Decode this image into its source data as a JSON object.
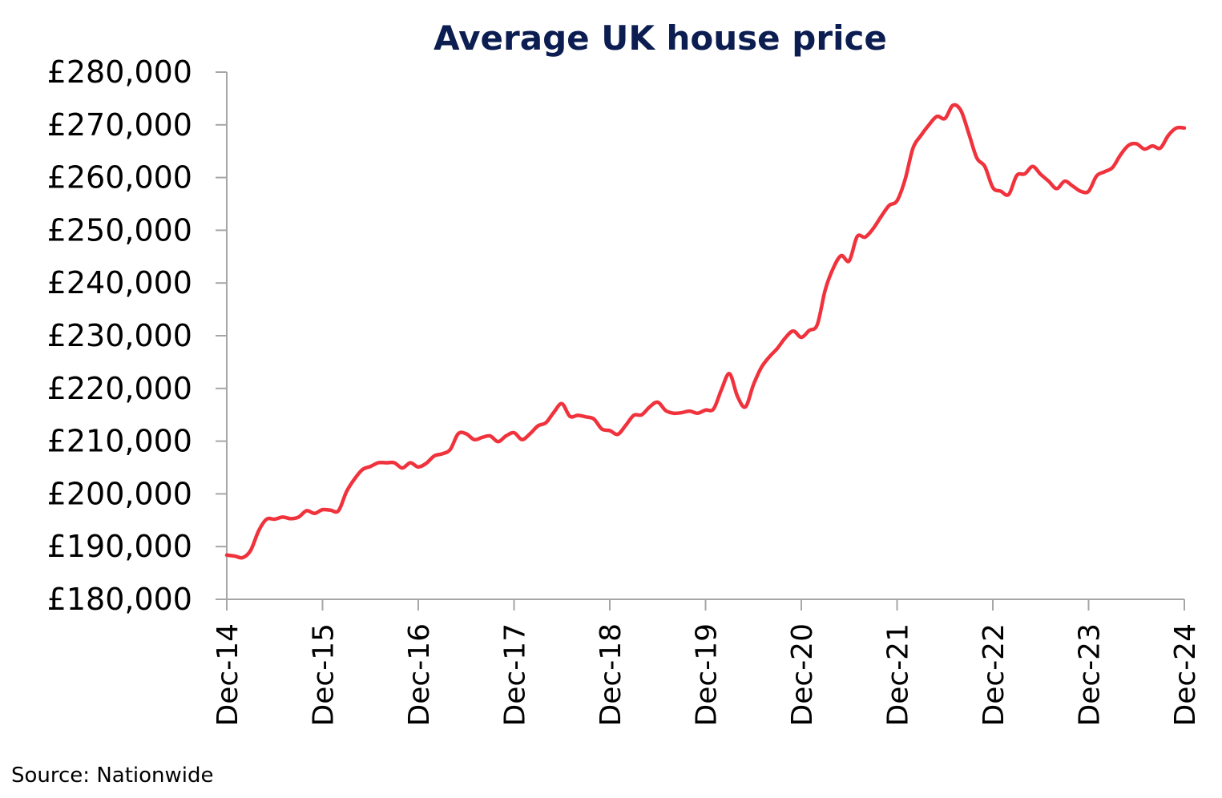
{
  "chart_data": {
    "type": "line",
    "title": "Average UK house price",
    "xlabel": "",
    "ylabel": "",
    "ylim": [
      180000,
      280000
    ],
    "yticks": [
      180000,
      190000,
      200000,
      210000,
      220000,
      230000,
      240000,
      250000,
      260000,
      270000,
      280000
    ],
    "ytick_labels": [
      "£180,000",
      "£190,000",
      "£200,000",
      "£210,000",
      "£220,000",
      "£230,000",
      "£240,000",
      "£250,000",
      "£260,000",
      "£270,000",
      "£280,000"
    ],
    "xtick_labels": [
      "Dec-14",
      "Dec-15",
      "Dec-16",
      "Dec-17",
      "Dec-18",
      "Dec-19",
      "Dec-20",
      "Dec-21",
      "Dec-22",
      "Dec-23",
      "Dec-24"
    ],
    "grid": false,
    "legend": "none",
    "colors": {
      "line": "#f0323c",
      "title": "#0b1d51",
      "axis": "#a6a6a6"
    },
    "series": [
      {
        "name": "",
        "x": [
          "Dec-14",
          "Jan-15",
          "Feb-15",
          "Mar-15",
          "Apr-15",
          "May-15",
          "Jun-15",
          "Jul-15",
          "Aug-15",
          "Sep-15",
          "Oct-15",
          "Nov-15",
          "Dec-15",
          "Jan-16",
          "Feb-16",
          "Mar-16",
          "Apr-16",
          "May-16",
          "Jun-16",
          "Jul-16",
          "Aug-16",
          "Sep-16",
          "Oct-16",
          "Nov-16",
          "Dec-16",
          "Jan-17",
          "Feb-17",
          "Mar-17",
          "Apr-17",
          "May-17",
          "Jun-17",
          "Jul-17",
          "Aug-17",
          "Sep-17",
          "Oct-17",
          "Nov-17",
          "Dec-17",
          "Jan-18",
          "Feb-18",
          "Mar-18",
          "Apr-18",
          "May-18",
          "Jun-18",
          "Jul-18",
          "Aug-18",
          "Sep-18",
          "Oct-18",
          "Nov-18",
          "Dec-18",
          "Jan-19",
          "Feb-19",
          "Mar-19",
          "Apr-19",
          "May-19",
          "Jun-19",
          "Jul-19",
          "Aug-19",
          "Sep-19",
          "Oct-19",
          "Nov-19",
          "Dec-19",
          "Jan-20",
          "Feb-20",
          "Mar-20",
          "Apr-20",
          "May-20",
          "Jun-20",
          "Jul-20",
          "Aug-20",
          "Sep-20",
          "Oct-20",
          "Nov-20",
          "Dec-20",
          "Jan-21",
          "Feb-21",
          "Mar-21",
          "Apr-21",
          "May-21",
          "Jun-21",
          "Jul-21",
          "Aug-21",
          "Sep-21",
          "Oct-21",
          "Nov-21",
          "Dec-21",
          "Jan-22",
          "Feb-22",
          "Mar-22",
          "Apr-22",
          "May-22",
          "Jun-22",
          "Jul-22",
          "Aug-22",
          "Sep-22",
          "Oct-22",
          "Nov-22",
          "Dec-22",
          "Jan-23",
          "Feb-23",
          "Mar-23",
          "Apr-23",
          "May-23",
          "Jun-23",
          "Jul-23",
          "Aug-23",
          "Sep-23",
          "Oct-23",
          "Nov-23",
          "Dec-23",
          "Jan-24",
          "Feb-24",
          "Mar-24",
          "Apr-24",
          "May-24",
          "Jun-24",
          "Jul-24",
          "Aug-24",
          "Sep-24",
          "Oct-24",
          "Nov-24",
          "Dec-24"
        ],
        "values": [
          188400,
          188200,
          187900,
          189300,
          193000,
          195200,
          195200,
          195600,
          195300,
          195600,
          196800,
          196300,
          197000,
          196900,
          196800,
          200400,
          202800,
          204600,
          205200,
          205900,
          205900,
          205900,
          204900,
          205900,
          205100,
          205800,
          207200,
          207600,
          208400,
          211400,
          211400,
          210300,
          210700,
          211000,
          209900,
          211000,
          211600,
          210300,
          211400,
          212900,
          213500,
          215500,
          217100,
          214700,
          214900,
          214600,
          214200,
          212300,
          212000,
          211300,
          213000,
          214900,
          215000,
          216500,
          217400,
          215800,
          215300,
          215400,
          215700,
          215300,
          215900,
          216100,
          219800,
          222800,
          218500,
          216500,
          220700,
          224000,
          226000,
          227600,
          229600,
          230900,
          229700,
          231000,
          232100,
          238700,
          242800,
          245200,
          244200,
          248800,
          248700,
          250300,
          252600,
          254700,
          255600,
          259600,
          265600,
          268000,
          270000,
          271600,
          271200,
          273700,
          272700,
          268300,
          263700,
          262100,
          258100,
          257400,
          256800,
          260400,
          260700,
          262100,
          260600,
          259300,
          257900,
          259300,
          258400,
          257400,
          257400,
          260300,
          261100,
          261900,
          264300,
          266100,
          266400,
          265400,
          266000,
          265600,
          268000,
          269400,
          269400
        ]
      }
    ]
  },
  "source": "Source: Nationwide"
}
